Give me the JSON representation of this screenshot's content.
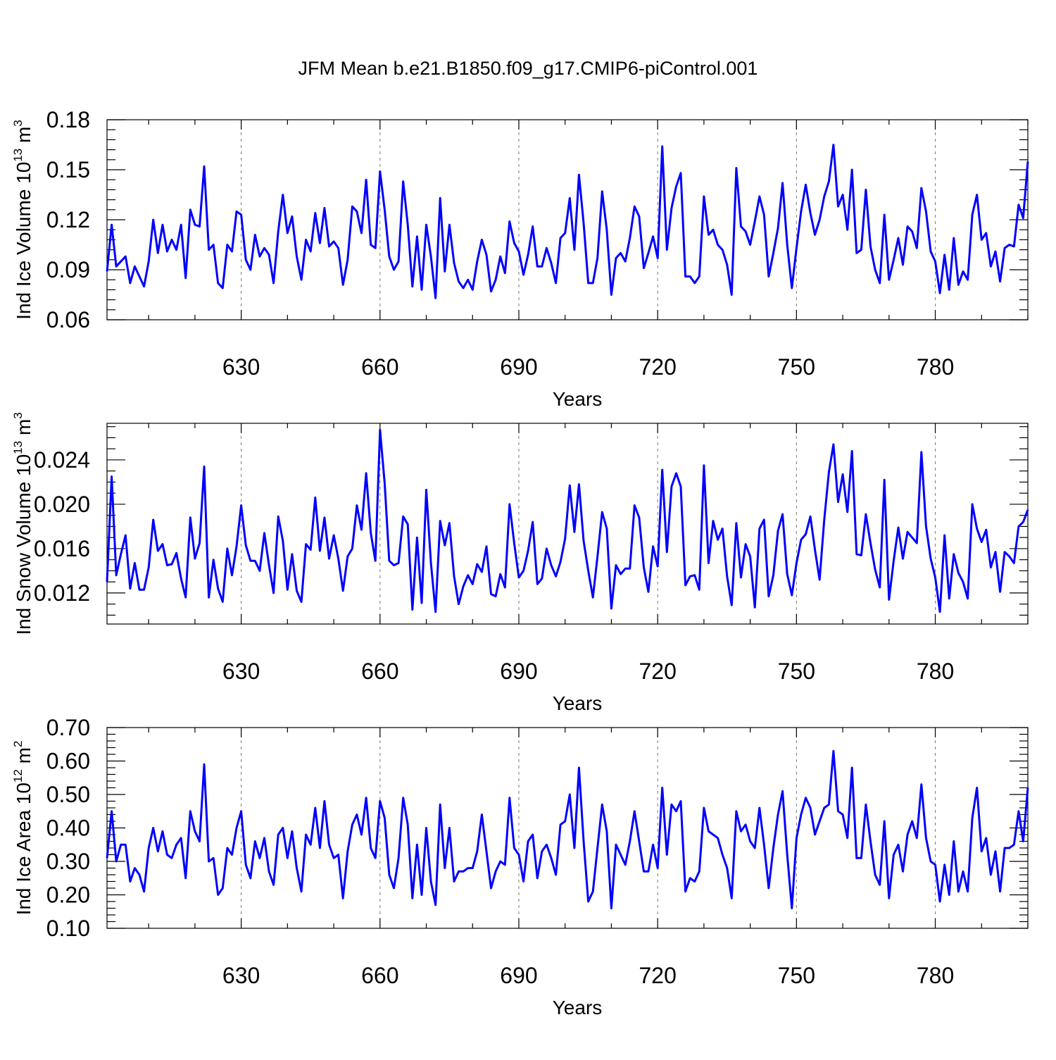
{
  "title": "JFM Mean b.e21.B1850.f09_g17.CMIP6-piControl.001",
  "chart_data": [
    {
      "type": "line",
      "title": "JFM Mean b.e21.B1850.f09_g17.CMIP6-piControl.001",
      "xlabel": "Years",
      "ylabel": "Ind Ice Volume 10",
      "ylabel_exp": "13",
      "ylabel_unit": " m",
      "ylabel_unit_exp": "3",
      "xlim": [
        601,
        800
      ],
      "ylim": [
        0.06,
        0.18
      ],
      "xticks": [
        630,
        660,
        690,
        720,
        750,
        780
      ],
      "xtick_labels": [
        "630",
        "660",
        "690",
        "720",
        "750",
        "780"
      ],
      "yticks": [
        0.06,
        0.09,
        0.12,
        0.15,
        0.18
      ],
      "ytick_labels": [
        "0.06",
        "0.09",
        "0.12",
        "0.15",
        "0.18"
      ],
      "grid": "vertical-dashed",
      "color": "#0000ff",
      "series": [
        {
          "name": "Ind Ice Volume",
          "x_start": 601,
          "values": [
            0.089,
            0.117,
            0.092,
            0.095,
            0.098,
            0.082,
            0.092,
            0.086,
            0.08,
            0.095,
            0.12,
            0.1,
            0.117,
            0.101,
            0.108,
            0.102,
            0.117,
            0.085,
            0.126,
            0.117,
            0.116,
            0.152,
            0.102,
            0.105,
            0.082,
            0.079,
            0.105,
            0.101,
            0.125,
            0.123,
            0.096,
            0.09,
            0.111,
            0.098,
            0.103,
            0.099,
            0.082,
            0.113,
            0.135,
            0.112,
            0.122,
            0.098,
            0.084,
            0.108,
            0.101,
            0.124,
            0.106,
            0.127,
            0.104,
            0.107,
            0.103,
            0.081,
            0.096,
            0.128,
            0.125,
            0.112,
            0.144,
            0.105,
            0.103,
            0.149,
            0.126,
            0.098,
            0.09,
            0.095,
            0.143,
            0.117,
            0.08,
            0.11,
            0.078,
            0.117,
            0.098,
            0.073,
            0.133,
            0.089,
            0.117,
            0.094,
            0.083,
            0.079,
            0.084,
            0.078,
            0.095,
            0.108,
            0.099,
            0.077,
            0.084,
            0.098,
            0.088,
            0.119,
            0.106,
            0.101,
            0.087,
            0.099,
            0.116,
            0.092,
            0.092,
            0.103,
            0.094,
            0.082,
            0.109,
            0.112,
            0.133,
            0.102,
            0.147,
            0.118,
            0.082,
            0.082,
            0.097,
            0.137,
            0.114,
            0.075,
            0.097,
            0.1,
            0.095,
            0.109,
            0.128,
            0.122,
            0.091,
            0.1,
            0.11,
            0.097,
            0.164,
            0.102,
            0.127,
            0.14,
            0.148,
            0.086,
            0.086,
            0.082,
            0.086,
            0.134,
            0.111,
            0.114,
            0.105,
            0.102,
            0.093,
            0.075,
            0.151,
            0.116,
            0.113,
            0.105,
            0.119,
            0.134,
            0.123,
            0.086,
            0.1,
            0.115,
            0.142,
            0.105,
            0.079,
            0.103,
            0.125,
            0.141,
            0.124,
            0.111,
            0.12,
            0.134,
            0.143,
            0.165,
            0.128,
            0.135,
            0.114,
            0.15,
            0.1,
            0.102,
            0.138,
            0.104,
            0.09,
            0.082,
            0.123,
            0.084,
            0.096,
            0.109,
            0.093,
            0.116,
            0.113,
            0.103,
            0.139,
            0.125,
            0.101,
            0.095,
            0.076,
            0.099,
            0.078,
            0.109,
            0.081,
            0.089,
            0.084,
            0.123,
            0.135,
            0.108,
            0.112,
            0.092,
            0.101,
            0.083,
            0.103,
            0.105,
            0.104,
            0.129,
            0.121,
            0.155
          ]
        }
      ]
    },
    {
      "type": "line",
      "xlabel": "Years",
      "ylabel": "Ind Snow Volume 10",
      "ylabel_exp": "13",
      "ylabel_unit": " m",
      "ylabel_unit_exp": "3",
      "xlim": [
        601,
        800
      ],
      "ylim": [
        0.0092,
        0.0273
      ],
      "xticks": [
        630,
        660,
        690,
        720,
        750,
        780
      ],
      "xtick_labels": [
        "630",
        "660",
        "690",
        "720",
        "750",
        "780"
      ],
      "yticks": [
        0.012,
        0.016,
        0.02,
        0.024
      ],
      "ytick_labels": [
        "0.012",
        "0.016",
        "0.020",
        "0.024"
      ],
      "grid": "vertical-dashed",
      "color": "#0000ff",
      "series": [
        {
          "name": "Ind Snow Volume",
          "x_start": 601,
          "values": [
            0.013,
            0.0225,
            0.0136,
            0.0155,
            0.0172,
            0.0124,
            0.0147,
            0.0123,
            0.0123,
            0.0143,
            0.0186,
            0.0158,
            0.0164,
            0.0145,
            0.0146,
            0.0156,
            0.0133,
            0.0116,
            0.0188,
            0.0151,
            0.0165,
            0.0234,
            0.0116,
            0.015,
            0.0124,
            0.0112,
            0.016,
            0.0136,
            0.0162,
            0.0199,
            0.0163,
            0.0149,
            0.0149,
            0.014,
            0.0174,
            0.0145,
            0.012,
            0.0189,
            0.0167,
            0.0123,
            0.0155,
            0.0122,
            0.0112,
            0.0164,
            0.0159,
            0.0206,
            0.0158,
            0.0188,
            0.0151,
            0.0172,
            0.0151,
            0.0122,
            0.0153,
            0.016,
            0.0199,
            0.0177,
            0.0228,
            0.0174,
            0.0149,
            0.0267,
            0.0219,
            0.0149,
            0.0145,
            0.0147,
            0.0189,
            0.0182,
            0.0105,
            0.017,
            0.0111,
            0.0213,
            0.0147,
            0.0103,
            0.0185,
            0.0163,
            0.0183,
            0.0135,
            0.011,
            0.0126,
            0.0136,
            0.0128,
            0.0146,
            0.0139,
            0.0162,
            0.0119,
            0.0117,
            0.0137,
            0.0125,
            0.02,
            0.0165,
            0.0134,
            0.014,
            0.0158,
            0.0184,
            0.0128,
            0.0133,
            0.016,
            0.0145,
            0.0135,
            0.0148,
            0.0169,
            0.0217,
            0.0175,
            0.0218,
            0.0167,
            0.014,
            0.0116,
            0.0153,
            0.0193,
            0.0178,
            0.0106,
            0.0145,
            0.0137,
            0.0142,
            0.0142,
            0.0199,
            0.0188,
            0.0143,
            0.0121,
            0.0162,
            0.0144,
            0.0231,
            0.0157,
            0.0216,
            0.0228,
            0.0216,
            0.0127,
            0.0135,
            0.0136,
            0.0123,
            0.0235,
            0.0147,
            0.0185,
            0.0168,
            0.0178,
            0.0135,
            0.0109,
            0.0183,
            0.0134,
            0.0164,
            0.0153,
            0.0107,
            0.0178,
            0.0186,
            0.0117,
            0.0136,
            0.0176,
            0.0191,
            0.0137,
            0.0118,
            0.0147,
            0.0168,
            0.0173,
            0.0189,
            0.0159,
            0.0132,
            0.0186,
            0.0229,
            0.0254,
            0.0202,
            0.0227,
            0.0193,
            0.0248,
            0.0155,
            0.0154,
            0.0191,
            0.0165,
            0.0141,
            0.0125,
            0.0222,
            0.0114,
            0.0149,
            0.0179,
            0.0151,
            0.0175,
            0.017,
            0.0165,
            0.0247,
            0.018,
            0.0151,
            0.0134,
            0.0103,
            0.0172,
            0.0115,
            0.0155,
            0.0138,
            0.013,
            0.0115,
            0.02,
            0.0178,
            0.0166,
            0.0177,
            0.0143,
            0.0157,
            0.0121,
            0.0157,
            0.0153,
            0.0147,
            0.018,
            0.0184,
            0.0195
          ]
        }
      ]
    },
    {
      "type": "line",
      "xlabel": "Years",
      "ylabel": "Ind Ice Area 10",
      "ylabel_exp": "12",
      "ylabel_unit": " m",
      "ylabel_unit_exp": "2",
      "xlim": [
        601,
        800
      ],
      "ylim": [
        0.1,
        0.7
      ],
      "xticks": [
        630,
        660,
        690,
        720,
        750,
        780
      ],
      "xtick_labels": [
        "630",
        "660",
        "690",
        "720",
        "750",
        "780"
      ],
      "yticks": [
        0.1,
        0.2,
        0.3,
        0.4,
        0.5,
        0.6,
        0.7
      ],
      "ytick_labels": [
        "0.10",
        "0.20",
        "0.30",
        "0.40",
        "0.50",
        "0.60",
        "0.70"
      ],
      "grid": "vertical-dashed",
      "color": "#0000ff",
      "series": [
        {
          "name": "Ind Ice Area",
          "x_start": 601,
          "values": [
            0.31,
            0.45,
            0.3,
            0.35,
            0.35,
            0.24,
            0.28,
            0.26,
            0.21,
            0.34,
            0.4,
            0.33,
            0.39,
            0.32,
            0.31,
            0.35,
            0.37,
            0.25,
            0.45,
            0.39,
            0.36,
            0.59,
            0.3,
            0.31,
            0.2,
            0.22,
            0.34,
            0.32,
            0.4,
            0.45,
            0.29,
            0.25,
            0.36,
            0.31,
            0.37,
            0.27,
            0.23,
            0.38,
            0.4,
            0.31,
            0.39,
            0.28,
            0.21,
            0.38,
            0.35,
            0.46,
            0.34,
            0.48,
            0.35,
            0.31,
            0.32,
            0.19,
            0.33,
            0.41,
            0.44,
            0.38,
            0.49,
            0.34,
            0.31,
            0.48,
            0.43,
            0.26,
            0.22,
            0.31,
            0.49,
            0.41,
            0.19,
            0.35,
            0.2,
            0.4,
            0.24,
            0.17,
            0.47,
            0.28,
            0.4,
            0.24,
            0.27,
            0.27,
            0.28,
            0.28,
            0.33,
            0.44,
            0.33,
            0.22,
            0.27,
            0.3,
            0.29,
            0.49,
            0.34,
            0.32,
            0.24,
            0.36,
            0.38,
            0.25,
            0.33,
            0.35,
            0.31,
            0.26,
            0.41,
            0.42,
            0.5,
            0.34,
            0.58,
            0.36,
            0.18,
            0.21,
            0.34,
            0.47,
            0.39,
            0.16,
            0.35,
            0.32,
            0.29,
            0.36,
            0.45,
            0.36,
            0.27,
            0.27,
            0.35,
            0.28,
            0.52,
            0.32,
            0.47,
            0.45,
            0.48,
            0.21,
            0.25,
            0.24,
            0.27,
            0.46,
            0.39,
            0.38,
            0.37,
            0.32,
            0.28,
            0.19,
            0.45,
            0.39,
            0.41,
            0.36,
            0.34,
            0.46,
            0.35,
            0.22,
            0.34,
            0.44,
            0.51,
            0.32,
            0.16,
            0.37,
            0.44,
            0.49,
            0.46,
            0.38,
            0.42,
            0.46,
            0.47,
            0.63,
            0.45,
            0.44,
            0.37,
            0.58,
            0.31,
            0.31,
            0.47,
            0.36,
            0.26,
            0.23,
            0.42,
            0.19,
            0.32,
            0.35,
            0.27,
            0.38,
            0.42,
            0.37,
            0.53,
            0.37,
            0.3,
            0.29,
            0.18,
            0.29,
            0.2,
            0.36,
            0.21,
            0.27,
            0.21,
            0.43,
            0.52,
            0.33,
            0.37,
            0.26,
            0.33,
            0.21,
            0.34,
            0.34,
            0.35,
            0.45,
            0.36,
            0.52
          ]
        }
      ]
    }
  ]
}
